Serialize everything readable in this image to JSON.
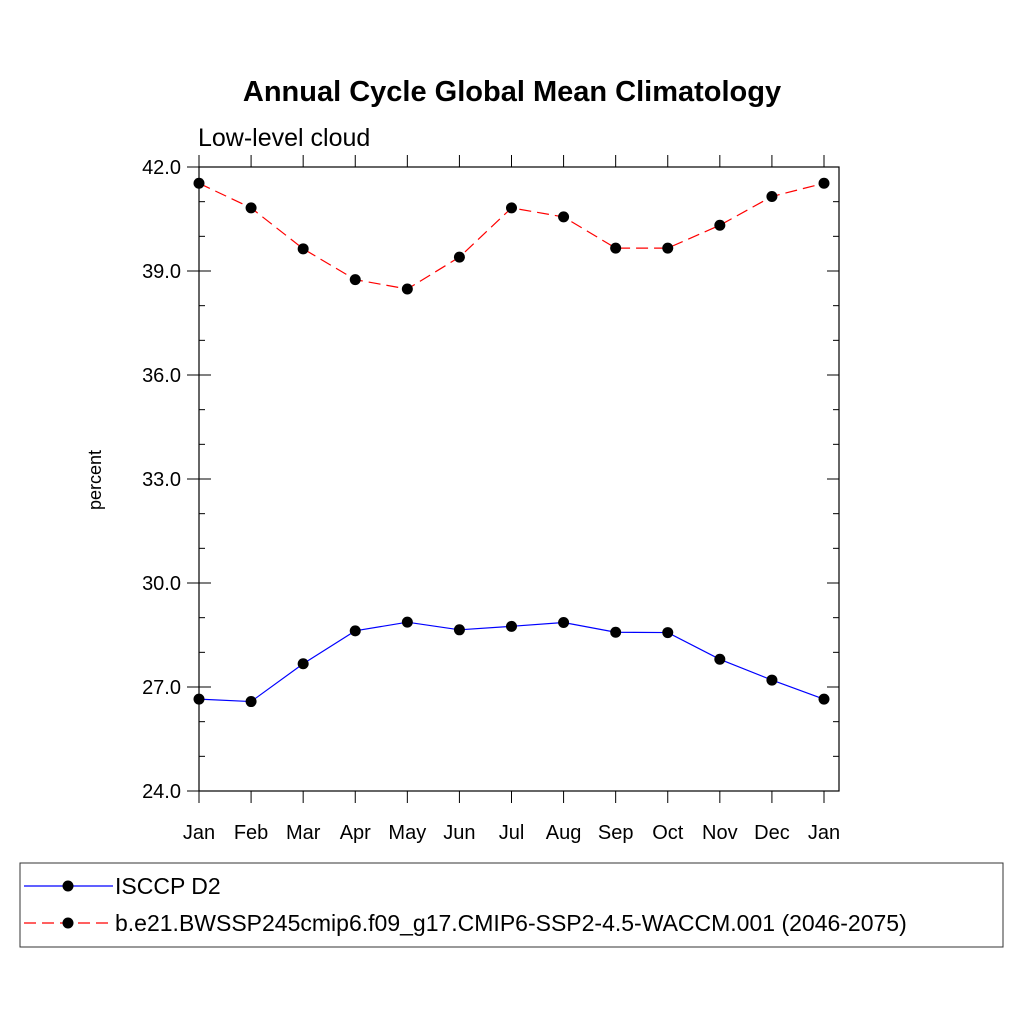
{
  "chart_data": {
    "type": "line",
    "title": "Annual Cycle Global Mean Climatology",
    "subtitle": "Low-level cloud",
    "xlabel": "",
    "ylabel": "percent",
    "categories": [
      "Jan",
      "Feb",
      "Mar",
      "Apr",
      "May",
      "Jun",
      "Jul",
      "Aug",
      "Sep",
      "Oct",
      "Nov",
      "Dec",
      "Jan"
    ],
    "ylim": [
      24.0,
      42.0
    ],
    "yticks": [
      "24.0",
      "27.0",
      "30.0",
      "33.0",
      "36.0",
      "39.0",
      "42.0"
    ],
    "ytick_values": [
      24,
      27,
      30,
      33,
      36,
      39,
      42
    ],
    "series": [
      {
        "name": "ISCCP D2",
        "color": "#0000ff",
        "dash": "solid",
        "values": [
          26.65,
          26.58,
          27.67,
          28.62,
          28.87,
          28.65,
          28.75,
          28.86,
          28.58,
          28.57,
          27.8,
          27.2,
          26.65
        ]
      },
      {
        "name": "b.e21.BWSSP245cmip6.f09_g17.CMIP6-SSP2-4.5-WACCM.001 (2046-2075)",
        "color": "#ff0000",
        "dash": "dashed",
        "values": [
          41.53,
          40.82,
          39.64,
          38.75,
          38.48,
          39.4,
          40.82,
          40.56,
          39.66,
          39.66,
          40.32,
          41.15,
          41.53
        ]
      }
    ],
    "legend_position": "bottom"
  }
}
